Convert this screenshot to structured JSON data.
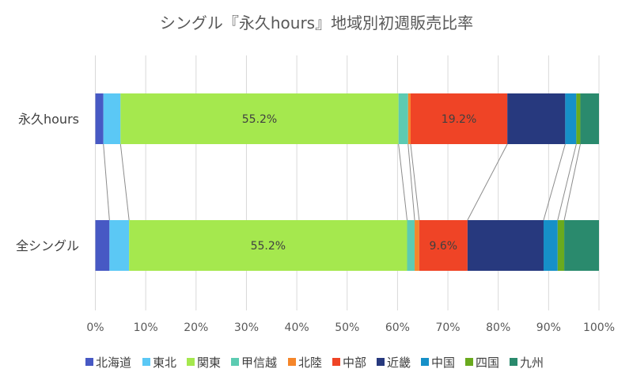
{
  "chart_data": {
    "type": "bar",
    "orientation": "horizontal",
    "stacked": "100%",
    "title": "シングル『永久hours』地域別初週販売比率",
    "categories": [
      "永久hours",
      "全シングル"
    ],
    "series": [
      {
        "name": "北海道",
        "color": "#4759c4",
        "values": [
          1.6,
          2.8
        ]
      },
      {
        "name": "東北",
        "color": "#5bc8f5",
        "values": [
          3.4,
          3.9
        ]
      },
      {
        "name": "関東",
        "color": "#a5e84e",
        "values": [
          55.2,
          55.2
        ],
        "labels": [
          "55.2%",
          "55.2%"
        ]
      },
      {
        "name": "甲信越",
        "color": "#5ccbb2",
        "values": [
          1.9,
          1.5
        ]
      },
      {
        "name": "北陸",
        "color": "#f5862a",
        "values": [
          0.5,
          0.9
        ]
      },
      {
        "name": "中部",
        "color": "#ef4426",
        "values": [
          19.2,
          9.6
        ],
        "labels": [
          "19.2%",
          "9.6%"
        ]
      },
      {
        "name": "近畿",
        "color": "#27397e",
        "values": [
          11.5,
          15.1
        ]
      },
      {
        "name": "中国",
        "color": "#1690c8",
        "values": [
          2.2,
          2.8
        ]
      },
      {
        "name": "四国",
        "color": "#6aaa1e",
        "values": [
          0.8,
          1.3
        ]
      },
      {
        "name": "九州",
        "color": "#2a8a6d",
        "values": [
          3.7,
          6.9
        ]
      }
    ],
    "xlim": [
      0,
      100
    ],
    "xticks": [
      "0%",
      "10%",
      "20%",
      "30%",
      "40%",
      "50%",
      "60%",
      "70%",
      "80%",
      "90%",
      "100%"
    ],
    "grid": true,
    "series_lines": true,
    "legend": "bottom"
  }
}
